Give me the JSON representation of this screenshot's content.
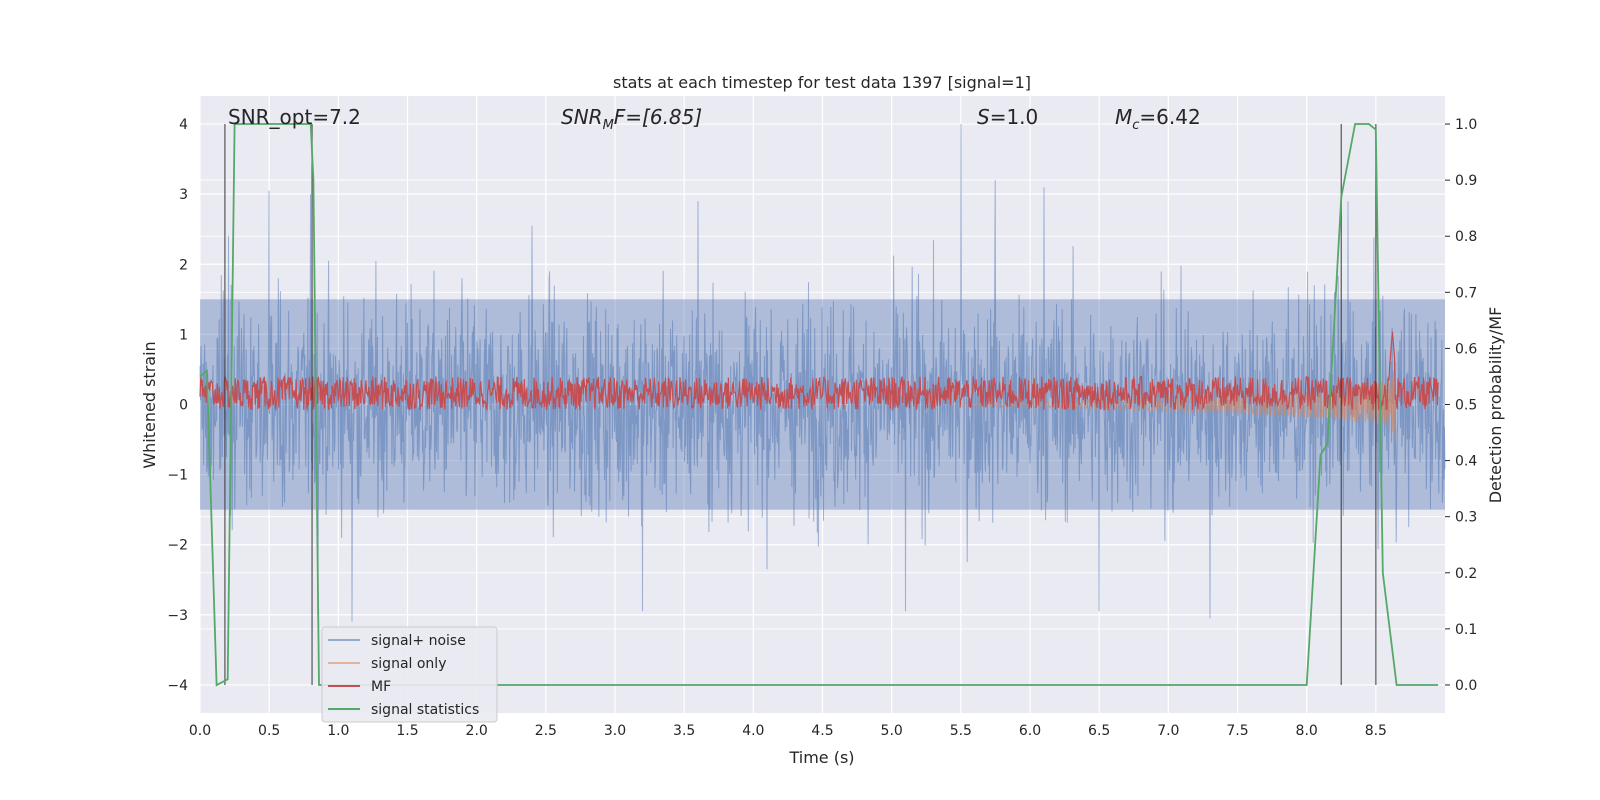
{
  "chart_data": {
    "type": "line",
    "title": "stats at each timestep for test data 1397 [signal=1]",
    "xlabel": "Time (s)",
    "ylabel_left": "Whitened strain",
    "ylabel_right": "Detection probability/MF",
    "xlim": [
      0.0,
      9.0
    ],
    "ylim_left": [
      -4.4,
      4.4
    ],
    "ylim_right": [
      -0.05,
      1.05
    ],
    "x_ticks": [
      "0.0",
      "0.5",
      "1.0",
      "1.5",
      "2.0",
      "2.5",
      "3.0",
      "3.5",
      "4.0",
      "4.5",
      "5.0",
      "5.5",
      "6.0",
      "6.5",
      "7.0",
      "7.5",
      "8.0",
      "8.5"
    ],
    "y_ticks_left": [
      "−4",
      "−3",
      "−2",
      "−1",
      "0",
      "1",
      "2",
      "3",
      "4"
    ],
    "y_ticks_right": [
      "0.0",
      "0.1",
      "0.2",
      "0.3",
      "0.4",
      "0.5",
      "0.6",
      "0.7",
      "0.8",
      "0.9",
      "1.0"
    ],
    "grid": true,
    "legend_position": "lower-left",
    "annotations": {
      "snr_opt": "SNR_opt=7.2",
      "snr_mf_a": "SNR",
      "snr_mf_sub": "M",
      "snr_mf_b": "F=[6.85]",
      "s_var": "S",
      "s_val": "=1.0",
      "mc_var": "M",
      "mc_sub": "c",
      "mc_val": "=6.42"
    },
    "vertical_markers": [
      0.18,
      0.81,
      8.25,
      8.5
    ],
    "series": [
      {
        "name": "signal+ noise",
        "color": "#4c72b0",
        "style": "dense noise, approx. ±1.5 typical, peaks to ±4",
        "envelope_peaks": [
          {
            "x": 0.5,
            "y": 3.05
          },
          {
            "x": 0.8,
            "y": 3.0
          },
          {
            "x": 2.4,
            "y": 2.55
          },
          {
            "x": 3.6,
            "y": 2.9
          },
          {
            "x": 5.5,
            "y": 4.0
          },
          {
            "x": 5.75,
            "y": 3.2
          },
          {
            "x": 6.1,
            "y": 3.1
          },
          {
            "x": 8.3,
            "y": 2.9
          },
          {
            "x": 0.85,
            "y": -3.0
          },
          {
            "x": 1.1,
            "y": -3.1
          },
          {
            "x": 3.2,
            "y": -2.95
          },
          {
            "x": 5.1,
            "y": -2.95
          },
          {
            "x": 6.5,
            "y": -2.95
          },
          {
            "x": 7.3,
            "y": -3.05
          }
        ]
      },
      {
        "name": "signal only",
        "color": "#dd8452",
        "style": "chirp growing from ~0 near t=5.5 to ±0.6 near t=8.65"
      },
      {
        "name": "MF",
        "color": "#c44e52",
        "axis": "right",
        "baseline": 0.52,
        "spread": 0.03,
        "spike": {
          "x": 8.62,
          "y": 0.63
        }
      },
      {
        "name": "signal statistics",
        "color": "#55a868",
        "axis": "right",
        "x": [
          0.0,
          0.05,
          0.12,
          0.2,
          0.25,
          0.3,
          0.8,
          0.82,
          0.86,
          0.9,
          7.2,
          7.3,
          8.0,
          8.1,
          8.15,
          8.25,
          8.35,
          8.4,
          8.45,
          8.5,
          8.55,
          8.65,
          8.95
        ],
        "y": [
          0.55,
          0.56,
          0.0,
          0.01,
          1.0,
          1.0,
          1.0,
          0.9,
          0.0,
          0.0,
          0.0,
          0.0,
          0.0,
          0.41,
          0.43,
          0.87,
          1.0,
          1.0,
          1.0,
          0.99,
          0.2,
          0.0,
          0.0
        ]
      }
    ]
  }
}
